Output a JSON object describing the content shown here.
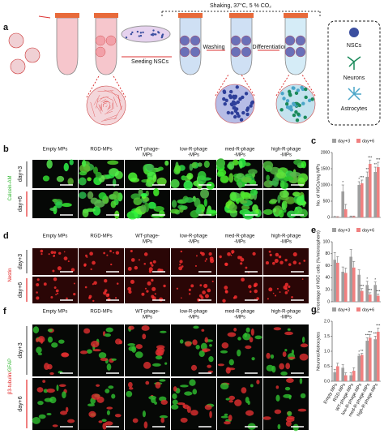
{
  "panel_a": {
    "label": "a",
    "conditions": "Shaking, 37°C, 5 % CO₂",
    "steps": [
      "Seeding NSCs",
      "Washing",
      "Differentiation"
    ],
    "legend": [
      "NSCs",
      "Neurons",
      "Astrocytes"
    ]
  },
  "panel_b": {
    "label": "b",
    "stain": [
      "Calcein-AM"
    ],
    "columns": [
      [
        "Empty MPs"
      ],
      [
        "RGD-MPs"
      ],
      [
        "WT-phage-",
        "MPs"
      ],
      [
        "low-R-phage",
        "-MPs"
      ],
      [
        "med-R-phage",
        "-MPs"
      ],
      [
        "high-R-phage",
        "-MPs"
      ]
    ],
    "rows": [
      "day+3",
      "day+6"
    ]
  },
  "panel_d": {
    "label": "d",
    "stain": [
      "Nestin"
    ],
    "columns": [
      [
        "Empty MPs"
      ],
      [
        "RGD-MPs"
      ],
      [
        "WT-phage-",
        "MPs"
      ],
      [
        "low-R-phage",
        "-MPs"
      ],
      [
        "med-R-phage",
        "-MPs"
      ],
      [
        "high-R-phage",
        "-MPs"
      ]
    ],
    "rows": [
      "day+3",
      "day+6"
    ]
  },
  "panel_f": {
    "label": "f",
    "stain": [
      "β3-tubulin/",
      "GFAP"
    ],
    "columns": [
      [
        "Empty MPs"
      ],
      [
        "RGD-MPs"
      ],
      [
        "WT-phage-",
        "MPs"
      ],
      [
        "low-R-phage",
        "-MPs"
      ],
      [
        "med-R-phage",
        "-MPs"
      ],
      [
        "high-R-phage",
        "-MPs"
      ]
    ],
    "rows": [
      "day+3",
      "day+6"
    ]
  },
  "chart_data": [
    {
      "type": "bar",
      "label": "c",
      "y_label": "No. of NSCs/mg MPs",
      "ylim": [
        0,
        2000
      ],
      "yticks": [
        0,
        500,
        1000,
        1500,
        2000
      ],
      "series": [
        {
          "name": "day+3",
          "color": "#9e9e9e",
          "values": [
            20,
            800,
            30,
            1000,
            1250,
            1400
          ],
          "errors": [
            10,
            200,
            15,
            100,
            150,
            150
          ],
          "significance": [
            null,
            "*",
            null,
            "*",
            "**",
            "**"
          ]
        },
        {
          "name": "day+6",
          "color": "#f08080",
          "values": [
            15,
            250,
            30,
            1050,
            1650,
            1550
          ],
          "errors": [
            10,
            150,
            15,
            100,
            120,
            150
          ],
          "significance": [
            null,
            null,
            null,
            "***",
            "***",
            "***"
          ]
        }
      ]
    },
    {
      "type": "bar",
      "label": "e",
      "y_label": "Percentage of NSC cells (%/microsphere)",
      "ylim": [
        0,
        100
      ],
      "yticks": [
        0,
        20,
        40,
        60,
        80,
        100
      ],
      "series": [
        {
          "name": "day+3",
          "color": "#9e9e9e",
          "values": [
            70,
            50,
            75,
            45,
            28,
            28
          ],
          "errors": [
            12,
            8,
            12,
            8,
            6,
            5
          ],
          "significance": [
            null,
            null,
            null,
            null,
            "*",
            "*"
          ]
        },
        {
          "name": "day+6",
          "color": "#f08080",
          "values": [
            65,
            48,
            57,
            18,
            12,
            10
          ],
          "errors": [
            10,
            8,
            10,
            4,
            3,
            3
          ],
          "significance": [
            null,
            null,
            null,
            "***",
            "***",
            "***"
          ]
        }
      ]
    },
    {
      "type": "bar",
      "label": "g",
      "y_label": "Neurons/Astrocytes",
      "ylim": [
        0,
        2
      ],
      "yticks": [
        {
          "value": 0,
          "label": "0.0"
        },
        {
          "value": 0.5,
          "label": "0.5"
        },
        {
          "value": 1,
          "label": "1.0"
        },
        {
          "value": 1.5,
          "label": "1.5"
        },
        {
          "value": 2,
          "label": "2.0"
        }
      ],
      "categories": [
        "Empty MPs",
        "RGD-MPs",
        "WT-phage-MPs",
        "low-R-phage-MPs",
        "med-R-phage-MPs",
        "high-R-phage-MPs"
      ],
      "series": [
        {
          "name": "day+3",
          "color": "#9e9e9e",
          "values": [
            0.3,
            0.45,
            0.2,
            0.85,
            1.35,
            1.4
          ],
          "errors": [
            0.1,
            0.1,
            0.08,
            0.05,
            0.1,
            0.1
          ],
          "significance": [
            null,
            null,
            null,
            "*",
            "***",
            "***"
          ]
        },
        {
          "name": "day+6",
          "color": "#f08080",
          "values": [
            0.5,
            0.2,
            0.35,
            0.88,
            1.45,
            1.65
          ],
          "errors": [
            0.1,
            0.08,
            0.1,
            0.05,
            0.1,
            0.12
          ],
          "significance": [
            null,
            null,
            null,
            "**",
            "***",
            "***"
          ]
        }
      ]
    }
  ]
}
